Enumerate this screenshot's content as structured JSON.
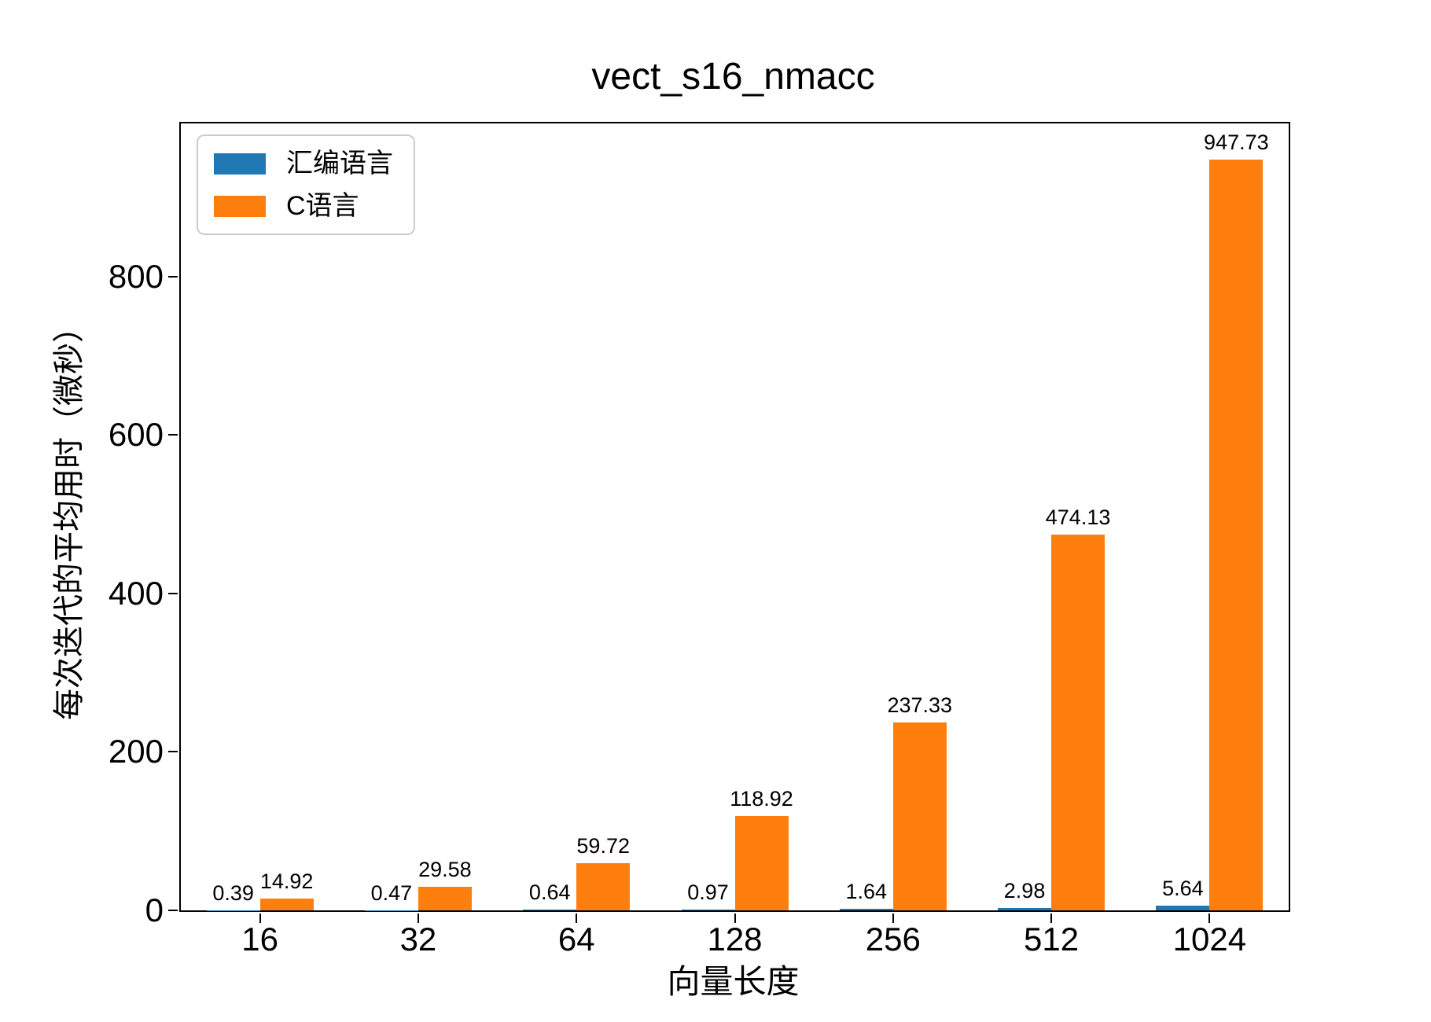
{
  "chart_data": {
    "type": "bar",
    "title": "vect_s16_nmacc",
    "xlabel": "向量长度",
    "ylabel": "每次迭代的平均用时（微秒）",
    "categories": [
      "16",
      "32",
      "64",
      "128",
      "256",
      "512",
      "1024"
    ],
    "series": [
      {
        "name": "汇编语言",
        "color": "#1f77b4",
        "values": [
          0.39,
          0.47,
          0.64,
          0.97,
          1.64,
          2.98,
          5.64
        ]
      },
      {
        "name": "C语言",
        "color": "#ff7f0e",
        "values": [
          14.92,
          29.58,
          59.72,
          118.92,
          237.33,
          474.13,
          947.73
        ]
      }
    ],
    "bar_value_labels": [
      "0.39",
      "0.47",
      "0.64",
      "0.97",
      "1.64",
      "2.98",
      "5.64",
      "14.92",
      "29.58",
      "59.72",
      "118.92",
      "237.33",
      "474.13",
      "947.73"
    ],
    "yticks": [
      0,
      200,
      400,
      600,
      800
    ],
    "ylim": [
      0,
      993
    ],
    "grid": false,
    "legend_position": "upper left",
    "colors": {
      "text": "#000000",
      "spine": "#000000",
      "legend_border": "#cccccc",
      "background": "#ffffff"
    }
  }
}
